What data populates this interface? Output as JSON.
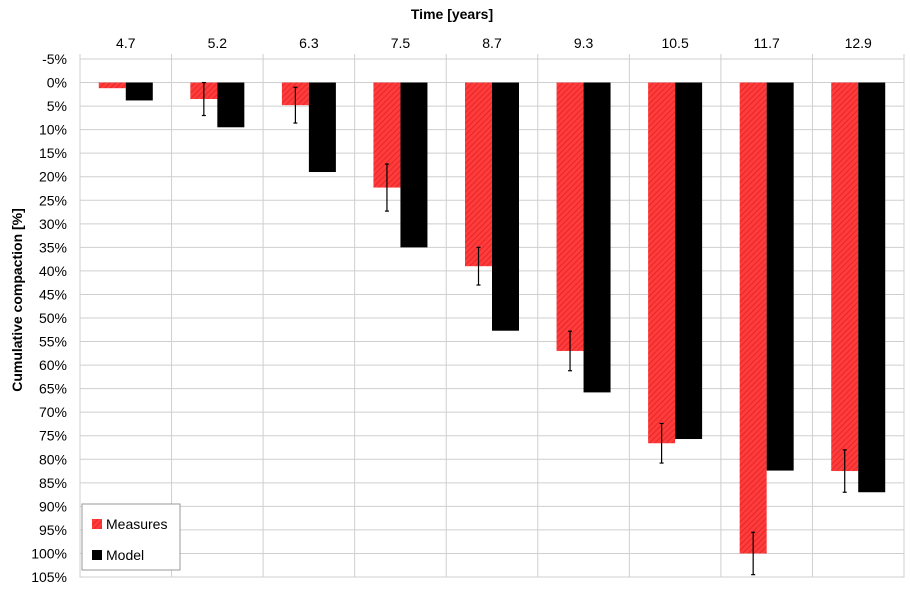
{
  "chart_data": {
    "type": "bar",
    "xlabel": "Time [years]",
    "ylabel": "Cumulative compaction [%]",
    "categories": [
      "4.7",
      "5.2",
      "6.3",
      "7.5",
      "8.7",
      "9.3",
      "10.5",
      "11.7",
      "12.9"
    ],
    "ylim": [
      -5,
      105
    ],
    "y_axis_inverted": true,
    "x_axis_position": "top",
    "ytick_labels": [
      "-5%",
      "0%",
      "5%",
      "10%",
      "15%",
      "20%",
      "25%",
      "30%",
      "35%",
      "40%",
      "45%",
      "50%",
      "55%",
      "60%",
      "65%",
      "70%",
      "75%",
      "80%",
      "85%",
      "90%",
      "95%",
      "100%",
      "105%"
    ],
    "grid": true,
    "legend_position": "bottom-left",
    "series": [
      {
        "name": "Measures",
        "color": "#ff3b3b",
        "values": [
          1.2,
          3.5,
          4.8,
          22.3,
          39.0,
          57.0,
          76.6,
          100.0,
          82.5
        ],
        "error": [
          0.0,
          3.5,
          3.8,
          5.0,
          4.0,
          4.2,
          4.2,
          4.5,
          4.5
        ]
      },
      {
        "name": "Model",
        "color": "#000000",
        "values": [
          3.8,
          9.5,
          19.0,
          35.0,
          52.7,
          65.8,
          75.7,
          82.4,
          87.0
        ]
      }
    ]
  }
}
